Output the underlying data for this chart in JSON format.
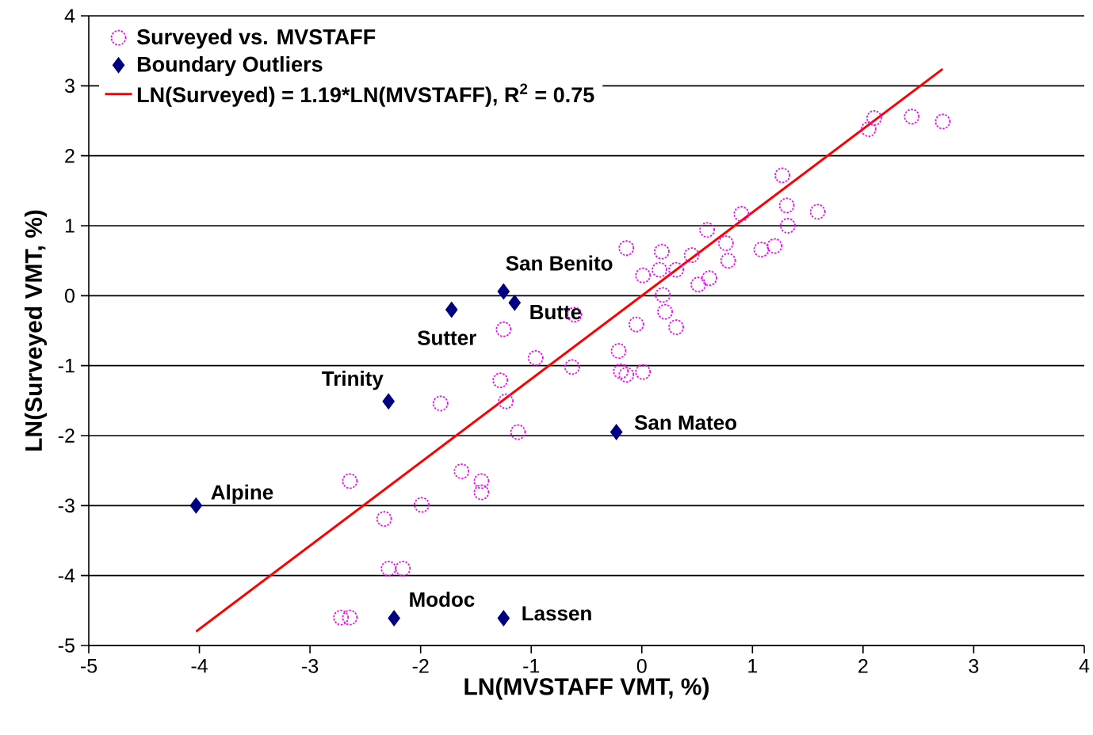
{
  "chart_data": {
    "type": "scatter",
    "xlabel": "LN(MVSTAFF VMT, %)",
    "ylabel": "LN(Surveyed VMT, %)",
    "xlim": [
      -5,
      4
    ],
    "ylim": [
      -5,
      4
    ],
    "xticks": [
      -5,
      -4,
      -3,
      -2,
      -1,
      0,
      1,
      2,
      3,
      4
    ],
    "yticks": [
      -5,
      -4,
      -3,
      -2,
      -1,
      0,
      1,
      2,
      3,
      4
    ],
    "grid": "y",
    "legend": "top left",
    "series": [
      {
        "name": "Surveyed vs. MVSTAFF",
        "marker": "circle",
        "color": "#ff00ff",
        "x": [
          2.72,
          2.44,
          2.1,
          2.05,
          1.27,
          1.59,
          1.31,
          1.32,
          0.9,
          0.59,
          0.76,
          1.2,
          1.08,
          0.45,
          0.78,
          0.18,
          -0.14,
          0.16,
          0.31,
          0.01,
          0.61,
          0.51,
          0.19,
          0.21,
          0.31,
          -0.05,
          -0.61,
          -1.25,
          -0.96,
          -0.21,
          -0.63,
          -0.19,
          -0.14,
          0.01,
          -1.28,
          -1.23,
          -1.82,
          -1.12,
          -2.64,
          -1.63,
          -1.45,
          -1.45,
          -1.99,
          -2.33,
          -2.29,
          -2.16,
          -2.72,
          -2.64
        ],
        "values": [
          2.49,
          2.56,
          2.54,
          2.38,
          1.72,
          1.2,
          1.29,
          1.0,
          1.17,
          0.94,
          0.75,
          0.71,
          0.66,
          0.58,
          0.5,
          0.63,
          0.68,
          0.37,
          0.37,
          0.29,
          0.25,
          0.16,
          0.01,
          -0.23,
          -0.45,
          -0.41,
          -0.27,
          -0.48,
          -0.89,
          -0.79,
          -1.02,
          -1.08,
          -1.13,
          -1.09,
          -1.21,
          -1.51,
          -1.54,
          -1.95,
          -2.65,
          -2.51,
          -2.65,
          -2.81,
          -2.99,
          -3.19,
          -3.9,
          -3.9,
          -4.6,
          -4.6
        ]
      },
      {
        "name": "Boundary Outliers",
        "marker": "diamond",
        "color": "#000080",
        "x": [
          -4.03,
          -2.29,
          -1.72,
          -1.25,
          -1.15,
          -0.23,
          -2.24,
          -1.25
        ],
        "values": [
          -3.0,
          -1.51,
          -0.2,
          0.06,
          -0.1,
          -1.95,
          -4.61,
          -4.61
        ]
      },
      {
        "name": "LN(Surveyed) = 1.19*LN(MVSTAFF), R$^{2}$ = 0.75",
        "type": "line",
        "marker": "none",
        "line_style": "solid",
        "color": "#ff0000",
        "x": [
          -4.03,
          2.72
        ],
        "values": [
          -4.8,
          3.24
        ]
      }
    ],
    "annotations": [
      {
        "text": "Alpine",
        "x": -4.03,
        "y": -3.0
      },
      {
        "text": "Trinity",
        "x": -2.29,
        "y": -1.51
      },
      {
        "text": "Sutter",
        "x": -1.72,
        "y": -0.2
      },
      {
        "text": "San Benito",
        "x": -1.25,
        "y": 0.06
      },
      {
        "text": "Butte",
        "x": -1.15,
        "y": -0.1
      },
      {
        "text": "San Mateo",
        "x": -0.23,
        "y": -1.95
      },
      {
        "text": "Modoc",
        "x": -2.24,
        "y": -4.61
      },
      {
        "text": "Lassen",
        "x": -1.25,
        "y": -4.61
      }
    ]
  }
}
